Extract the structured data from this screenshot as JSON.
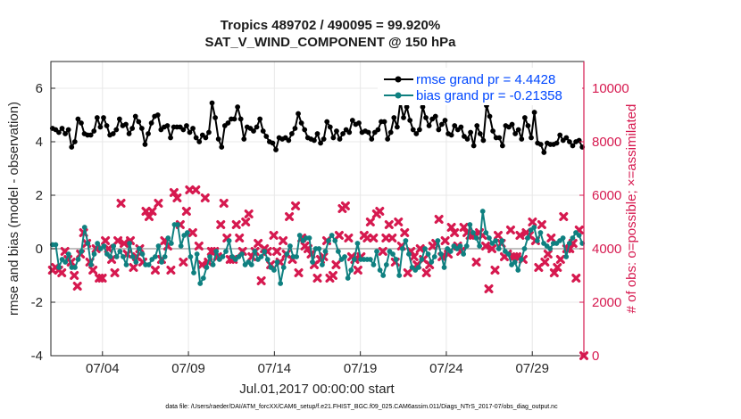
{
  "chart_data": {
    "type": "line",
    "title": "Tropics 489702 / 490095 = 99.920%",
    "subtitle": "SAT_V_WIND_COMPONENT @ 150 hPa",
    "xlabel": "Jul.01,2017 00:00:00 start",
    "ylabel": "rmse and bias (model - observation)",
    "y2label": "# of obs: o=possible; ×=assimilated",
    "ylim": [
      -4,
      7
    ],
    "y2lim": [
      0,
      11000
    ],
    "yticks": [
      "-4",
      "-2",
      "0",
      "2",
      "4",
      "6"
    ],
    "y2ticks": [
      "0",
      "2000",
      "4000",
      "6000",
      "8000",
      "10000"
    ],
    "xlim": [
      0,
      31
    ],
    "xticks": [
      {
        "value": 3,
        "label": "07/04"
      },
      {
        "value": 8,
        "label": "07/09"
      },
      {
        "value": 13,
        "label": "07/14"
      },
      {
        "value": 18,
        "label": "07/19"
      },
      {
        "value": 23,
        "label": "07/24"
      },
      {
        "value": 28,
        "label": "07/29"
      }
    ],
    "legend_location": "top-right",
    "footnote": "data file: /Users/raeder/DAI/ATM_forcXX/CAM6_setup/f.e21.FHIST_BGC.f09_025.CAM6assim.011/Diags_NTrS_2017-07/obs_diag_output.nc",
    "colors": {
      "rmse": "#000000",
      "bias": "#0f8080",
      "obs": "#d6194f",
      "zero": "#aaaaaa"
    },
    "series": [
      {
        "name": "rmse grand pr = 4.4428",
        "axis": "left",
        "values": [
          4.5,
          4.45,
          4.35,
          4.5,
          4.3,
          4.45,
          3.8,
          4.0,
          4.85,
          4.7,
          4.3,
          4.25,
          4.25,
          4.4,
          4.9,
          4.55,
          4.9,
          4.6,
          4.25,
          4.3,
          4.45,
          4.85,
          4.6,
          4.65,
          4.3,
          4.5,
          4.95,
          4.75,
          4.5,
          3.9,
          4.3,
          4.7,
          4.95,
          5.0,
          4.45,
          4.55,
          4.6,
          4.15,
          4.55,
          4.55,
          4.55,
          4.45,
          4.6,
          4.35,
          4.5,
          4.15,
          4.0,
          4.25,
          4.15,
          4.35,
          5.45,
          4.9,
          4.1,
          3.8,
          4.6,
          4.7,
          4.85,
          4.85,
          5.3,
          4.85,
          4.1,
          4.55,
          4.5,
          4.4,
          4.55,
          4.85,
          4.4,
          4.2,
          4.0,
          3.95,
          3.7,
          4.15,
          4.1,
          4.15,
          4.05,
          4.3,
          4.5,
          5.05,
          4.7,
          4.45,
          4.15,
          4.1,
          4.05,
          4.3,
          3.95,
          4.1,
          4.75,
          4.55,
          4.15,
          4.4,
          4.1,
          4.3,
          4.45,
          4.35,
          4.8,
          4.65,
          4.7,
          4.35,
          4.4,
          4.35,
          4.1,
          4.35,
          4.45,
          4.75,
          4.75,
          4.1,
          4.35,
          4.9,
          4.55,
          5.5,
          4.9,
          5.3,
          4.8,
          4.45,
          4.3,
          4.45,
          5.3,
          4.9,
          4.6,
          4.85,
          4.95,
          4.45,
          4.65,
          4.8,
          4.3,
          4.25,
          4.6,
          4.45,
          4.55,
          4.2,
          4.1,
          4.35,
          3.85,
          4.6,
          4.3,
          4.05,
          5.35,
          4.95,
          4.4,
          4.15,
          4.15,
          3.85,
          4.6,
          4.55,
          4.65,
          4.3,
          4.45,
          4.1,
          4.9,
          4.6,
          4.15,
          5.1,
          3.95,
          3.9,
          3.6,
          3.95,
          3.9,
          3.9,
          3.95,
          4.25,
          4.05,
          4.15,
          4.0,
          3.85,
          4.0,
          4.05,
          3.8
        ]
      },
      {
        "name": "bias grand pr = -0.21358",
        "axis": "left",
        "values": [
          0.15,
          0.15,
          -0.7,
          -0.4,
          -0.5,
          -0.2,
          -0.7,
          -0.7,
          -0.4,
          -0.1,
          0.8,
          0.2,
          -0.6,
          -0.2,
          0.2,
          0.0,
          0.1,
          -0.2,
          -0.3,
          0.1,
          -0.3,
          -0.1,
          -0.3,
          -0.6,
          0.2,
          -0.3,
          -0.5,
          0.0,
          -0.2,
          -0.6,
          -0.6,
          -0.4,
          -0.3,
          0.1,
          -0.5,
          -0.3,
          0.4,
          0.2,
          0.9,
          0.9,
          0.1,
          0.5,
          0.6,
          -0.3,
          -0.9,
          -0.2,
          -1.3,
          -1.1,
          -0.7,
          -0.3,
          -0.6,
          -0.1,
          -0.4,
          -0.3,
          -0.1,
          0.3,
          -0.3,
          -0.4,
          -0.3,
          -0.2,
          -0.6,
          -0.5,
          -0.6,
          -0.1,
          -0.4,
          -0.3,
          -0.1,
          -0.4,
          -0.7,
          -0.8,
          -0.5,
          -1.3,
          -0.7,
          -0.2,
          0.1,
          -0.3,
          -0.3,
          0.5,
          0.3,
          0.4,
          0.4,
          -0.5,
          0.0,
          0.0,
          -0.6,
          -0.1,
          0.3,
          0.5,
          0.3,
          -0.1,
          -0.4,
          -0.3,
          -1.1,
          -0.8,
          -0.4,
          0.2,
          -0.4,
          -0.4,
          -0.4,
          -0.4,
          -0.6,
          -0.1,
          -0.8,
          -1.0,
          -0.6,
          -0.1,
          -0.2,
          -0.4,
          -1.0,
          0.0,
          0.3,
          -0.2,
          -0.7,
          -0.8,
          -0.7,
          -0.4,
          0.0,
          -0.2,
          -0.5,
          -0.3,
          0.3,
          -0.2,
          -0.7,
          0.0,
          -0.1,
          0.1,
          0.0,
          0.1,
          -0.2,
          0.1,
          0.9,
          0.6,
          0.4,
          0.1,
          1.4,
          0.6,
          0.4,
          0.2,
          0.3,
          0.0,
          0.3,
          -0.1,
          -0.2,
          -0.6,
          -0.5,
          -0.8,
          -0.4,
          0.0,
          0.4,
          0.7,
          0.8,
          0.3,
          0.6,
          0.2,
          0.1,
          0.0,
          0.2,
          0.2,
          0.3,
          0.4,
          -0.3,
          0.2,
          0.4,
          0.6,
          0.5,
          0.2
        ]
      },
      {
        "name": "obs count",
        "axis": "right",
        "values": [
          3200,
          3300,
          3200,
          3100,
          3900,
          3600,
          3500,
          3000,
          2600,
          3800,
          4600,
          4200,
          3500,
          3200,
          4000,
          2900,
          2900,
          4300,
          4000,
          3600,
          3100,
          4300,
          5700,
          4200,
          3800,
          4300,
          3300,
          3700,
          4000,
          3500,
          5400,
          5200,
          5400,
          3200,
          5700,
          3600,
          4300,
          4100,
          3200,
          6100,
          5900,
          4900,
          3500,
          5400,
          6200,
          4600,
          6200,
          4100,
          3400,
          5900,
          3500,
          3900,
          3900,
          3700,
          4900,
          5700,
          4400,
          3600,
          3600,
          4900,
          4400,
          3900,
          5000,
          5300,
          3700,
          3900,
          4200,
          2800,
          4000,
          3900,
          3400,
          4500,
          3900,
          3500,
          4300,
          3800,
          5200,
          3600,
          5600,
          3100,
          4400,
          4100,
          4000,
          3800,
          3400,
          2900,
          3600,
          3700,
          4300,
          2900,
          3000,
          3400,
          4500,
          5500,
          5600,
          4400,
          3700,
          3600,
          3200,
          3700,
          4500,
          4400,
          5000,
          4400,
          5300,
          5400,
          3900,
          4400,
          4900,
          4400,
          3500,
          5000,
          4100,
          4600,
          3100,
          3900,
          3700,
          3400,
          4000,
          3600,
          3100,
          3400,
          4100,
          4200,
          5100,
          3700,
          4300,
          3800,
          4800,
          4600,
          4100,
          3900,
          4800,
          4600,
          4500,
          4500,
          3500,
          4600,
          4500,
          4100,
          2500,
          4000,
          3200,
          4500,
          4200,
          3700,
          3800,
          4700,
          3700,
          3700,
          4500,
          3600,
          4600,
          4500,
          5000,
          4300,
          3300,
          4900,
          3500,
          3800,
          4400,
          3100,
          3300,
          3600,
          5200,
          4000,
          4000,
          4200,
          2900,
          4700,
          0
        ]
      }
    ]
  }
}
